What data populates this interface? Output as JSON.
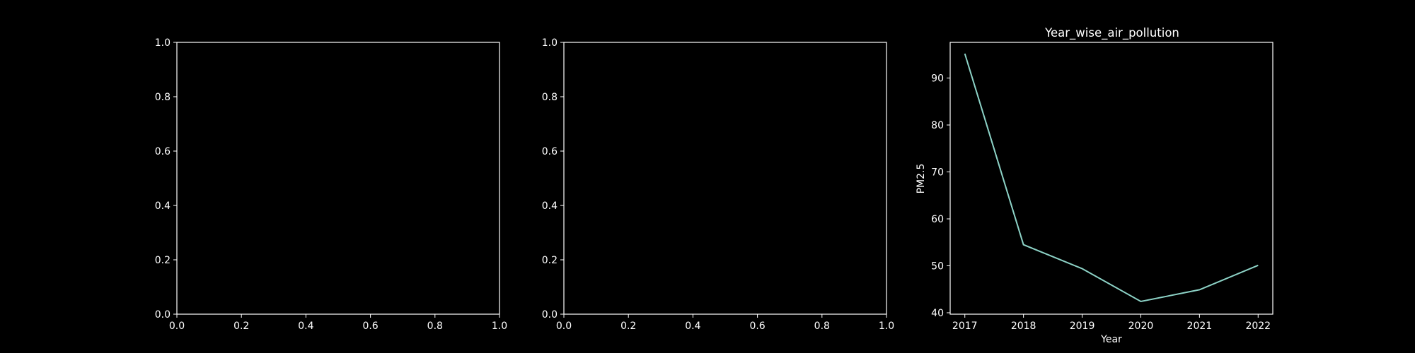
{
  "chart_data": [
    {
      "type": "line",
      "title": "",
      "xlabel": "",
      "ylabel": "",
      "xlim": [
        0,
        1
      ],
      "ylim": [
        0,
        1
      ],
      "xticks": [
        "0.0",
        "0.2",
        "0.4",
        "0.6",
        "0.8",
        "1.0"
      ],
      "yticks": [
        "0.0",
        "0.2",
        "0.4",
        "0.6",
        "0.8",
        "1.0"
      ],
      "series": [],
      "grid": false
    },
    {
      "type": "line",
      "title": "",
      "xlabel": "",
      "ylabel": "",
      "xlim": [
        0,
        1
      ],
      "ylim": [
        0,
        1
      ],
      "xticks": [
        "0.0",
        "0.2",
        "0.4",
        "0.6",
        "0.8",
        "1.0"
      ],
      "yticks": [
        "0.0",
        "0.2",
        "0.4",
        "0.6",
        "0.8",
        "1.0"
      ],
      "series": [],
      "grid": false
    },
    {
      "type": "line",
      "title": "Year_wise_air_pollution",
      "xlabel": "Year",
      "ylabel": "PM2.5",
      "x": [
        2017,
        2018,
        2019,
        2020,
        2021,
        2022
      ],
      "xlim": [
        2016.75,
        2022.25
      ],
      "ylim": [
        39.7,
        97.6
      ],
      "xticks": [
        "2017",
        "2018",
        "2019",
        "2020",
        "2021",
        "2022"
      ],
      "yticks": [
        "40",
        "50",
        "60",
        "70",
        "80",
        "90"
      ],
      "series": [
        {
          "values": [
            95.2,
            54.5,
            49.4,
            42.4,
            44.9,
            50.1
          ],
          "color": "#8dd3c7"
        }
      ],
      "grid": false
    }
  ],
  "colors": {
    "background": "#000000",
    "axes": "#ffffff",
    "line": "#8dd3c7"
  }
}
